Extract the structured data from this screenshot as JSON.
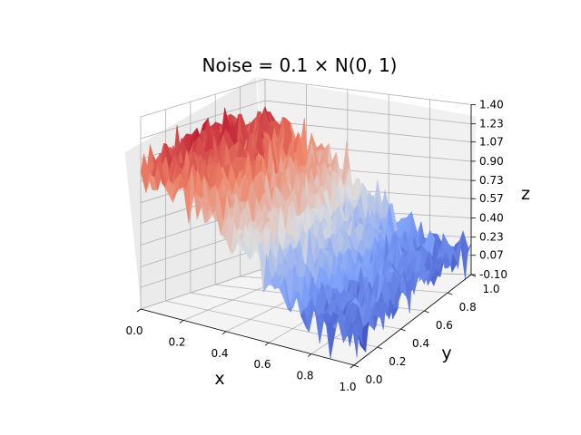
{
  "chart_data": {
    "type": "surface",
    "title": "Noise = 0.1 × N(0, 1)",
    "xlabel": "x",
    "ylabel": "y",
    "zlabel": "z",
    "xlim": [
      0.0,
      1.0
    ],
    "ylim": [
      0.0,
      1.0
    ],
    "zlim": [
      -0.1,
      1.4
    ],
    "xticks": [
      "0.0",
      "0.2",
      "0.4",
      "0.6",
      "0.8",
      "1.0"
    ],
    "yticks": [
      "0.0",
      "0.2",
      "0.4",
      "0.6",
      "0.8",
      "1.0"
    ],
    "zticks": [
      "-0.10",
      "0.07",
      "0.23",
      "0.40",
      "0.57",
      "0.73",
      "0.90",
      "1.07",
      "1.23",
      "1.40"
    ],
    "colormap": "coolwarm",
    "noise_sigma": 0.1,
    "grid": true
  }
}
